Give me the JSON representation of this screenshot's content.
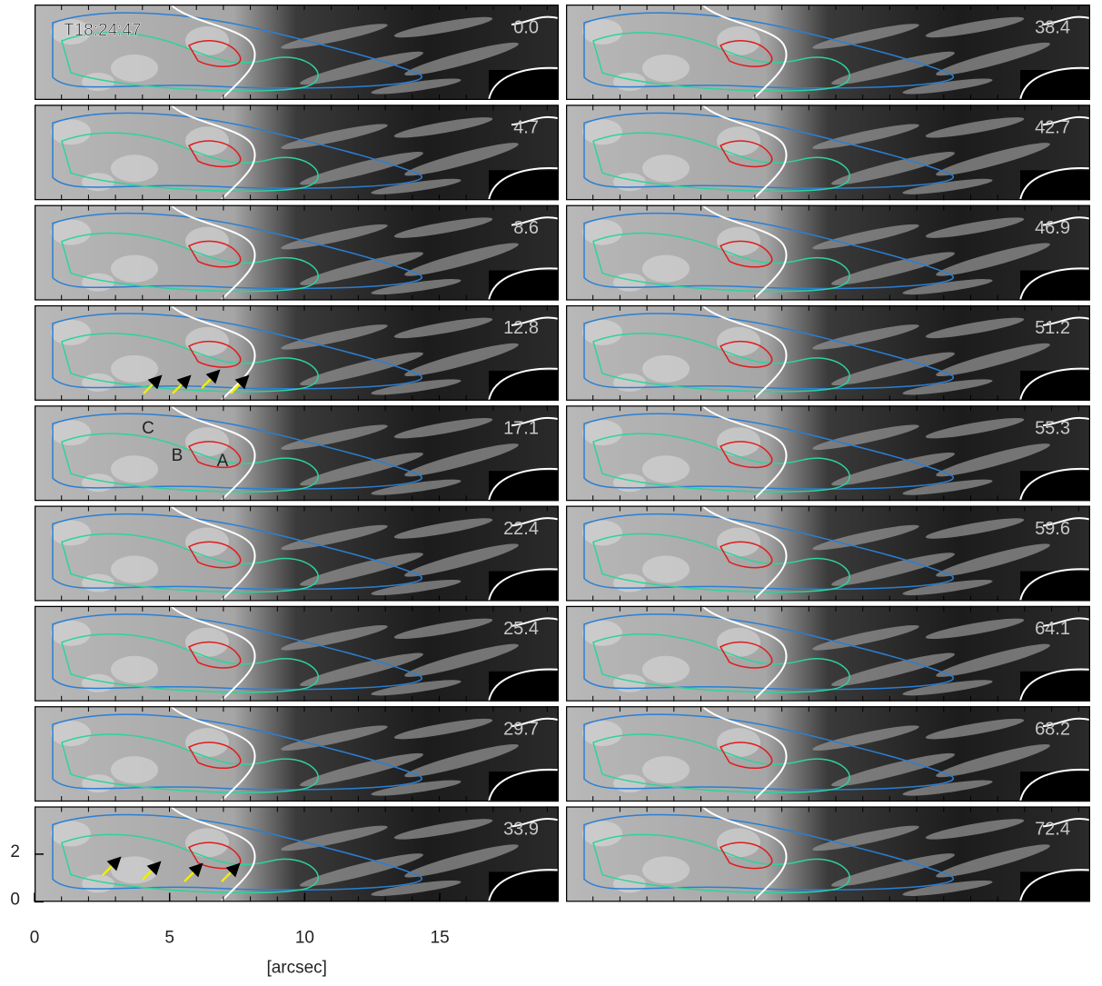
{
  "figure": {
    "timestamp": "T18:24:47",
    "panels": [
      {
        "time": "0.0"
      },
      {
        "time": "4.7"
      },
      {
        "time": "8.6"
      },
      {
        "time": "12.8"
      },
      {
        "time": "17.1"
      },
      {
        "time": "22.4"
      },
      {
        "time": "25.4"
      },
      {
        "time": "29.7"
      },
      {
        "time": "33.9"
      },
      {
        "time": "38.4"
      },
      {
        "time": "42.7"
      },
      {
        "time": "46.9"
      },
      {
        "time": "51.2"
      },
      {
        "time": "55.3"
      },
      {
        "time": "59.6"
      },
      {
        "time": "64.1"
      },
      {
        "time": "68.2"
      },
      {
        "time": "72.4"
      }
    ],
    "annotations": [
      "C",
      "B",
      "A"
    ],
    "x_axis": {
      "label": "[arcsec]",
      "lim": [
        0,
        19.4
      ],
      "ticks": [
        0,
        5,
        10,
        15
      ]
    },
    "y_axis": {
      "lim": [
        0,
        4
      ],
      "ticks": [
        0,
        2
      ]
    }
  }
}
